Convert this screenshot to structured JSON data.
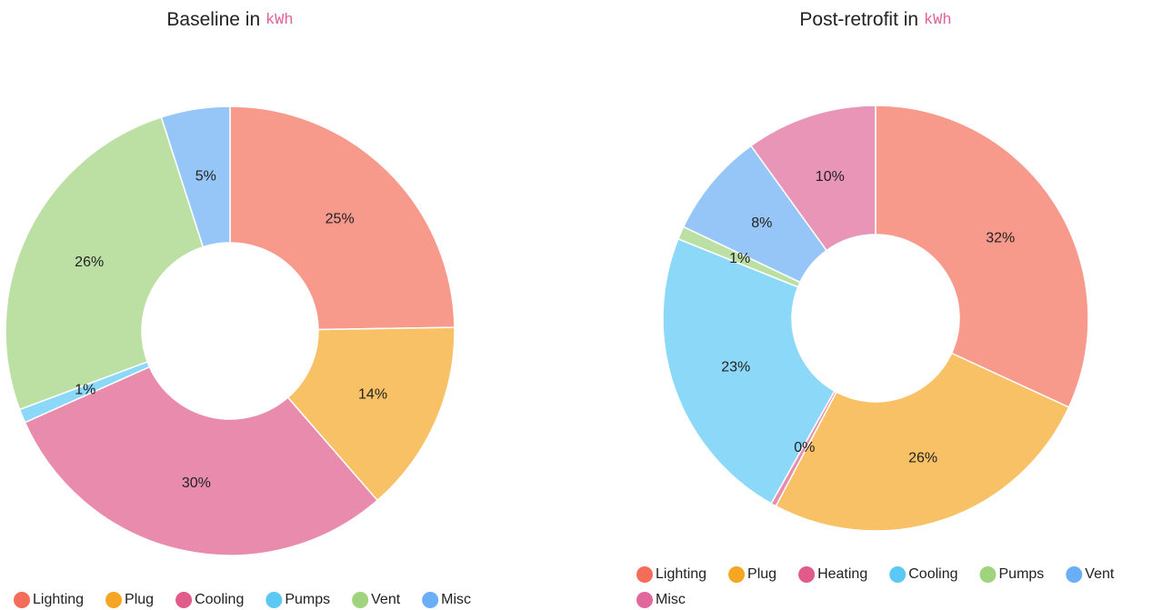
{
  "chart_data": [
    {
      "type": "pie",
      "title": "Baseline in",
      "title_unit": "kWh",
      "categories": [
        "Lighting",
        "Plug",
        "Cooling",
        "Pumps",
        "Vent",
        "Misc"
      ],
      "values": [
        25,
        14,
        30,
        1,
        26,
        5
      ],
      "value_labels": [
        "25%",
        "14%",
        "30%",
        "1%",
        "26%",
        "5%"
      ],
      "colors": [
        "#f46d5a",
        "#f5a623",
        "#e05a8a",
        "#5bc8f5",
        "#9fd37d",
        "#6aaef5"
      ]
    },
    {
      "type": "pie",
      "title": "Post-retrofit in",
      "title_unit": "kWh",
      "categories": [
        "Lighting",
        "Plug",
        "Heating",
        "Cooling",
        "Pumps",
        "Vent",
        "Misc"
      ],
      "values": [
        32,
        26,
        0.4,
        23,
        1,
        8,
        10
      ],
      "value_labels": [
        "32%",
        "26%",
        "0%",
        "23%",
        "1%",
        "8%",
        "10%"
      ],
      "colors": [
        "#f46d5a",
        "#f5a623",
        "#e05a8a",
        "#5bc8f5",
        "#9fd37d",
        "#6aaef5",
        "#e0689a"
      ]
    }
  ]
}
